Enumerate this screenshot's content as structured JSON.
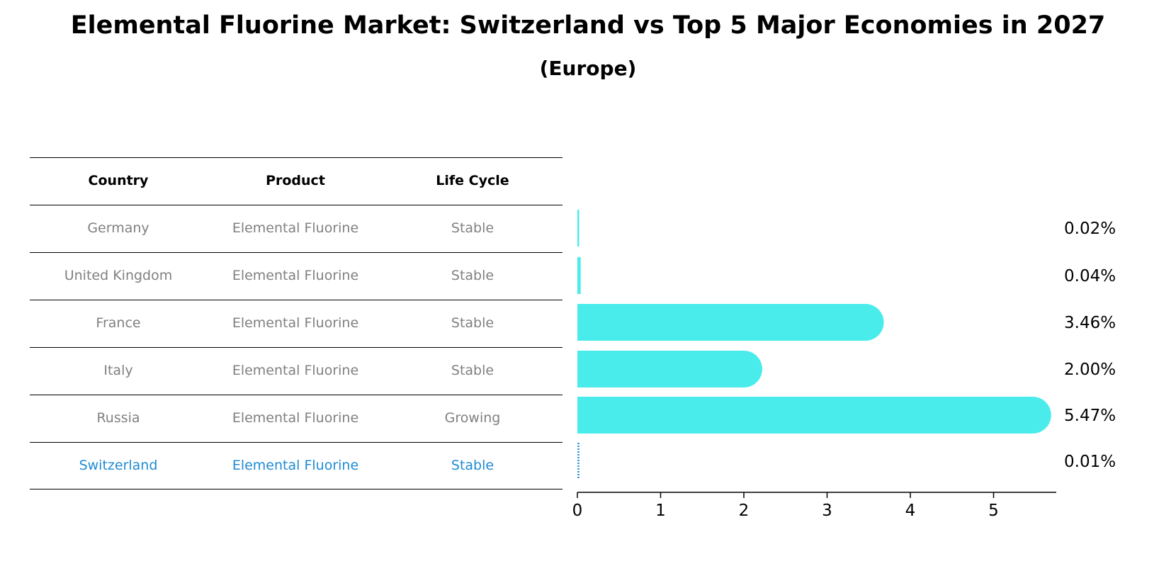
{
  "title": "Elemental Fluorine Market: Switzerland vs Top 5 Major Economies in 2027",
  "subtitle": "(Europe)",
  "table": {
    "headers": [
      "Country",
      "Product",
      "Life Cycle"
    ],
    "rows": [
      {
        "country": "Germany",
        "product": "Elemental Fluorine",
        "life_cycle": "Stable"
      },
      {
        "country": "United Kingdom",
        "product": "Elemental Fluorine",
        "life_cycle": "Stable"
      },
      {
        "country": "France",
        "product": "Elemental Fluorine",
        "life_cycle": "Stable"
      },
      {
        "country": "Italy",
        "product": "Elemental Fluorine",
        "life_cycle": "Stable"
      },
      {
        "country": "Russia",
        "product": "Elemental Fluorine",
        "life_cycle": "Growing"
      },
      {
        "country": "Switzerland",
        "product": "Elemental Fluorine",
        "life_cycle": "Stable"
      }
    ]
  },
  "colors": {
    "bar": "#4aeceb",
    "highlight": "#1f8bd4",
    "row_text": "#808080"
  },
  "chart_data": {
    "type": "bar",
    "orientation": "horizontal",
    "categories": [
      "Germany",
      "United Kingdom",
      "France",
      "Italy",
      "Russia",
      "Switzerland"
    ],
    "values": [
      0.02,
      0.04,
      3.46,
      2.0,
      5.47,
      0.01
    ],
    "value_labels": [
      "0.02%",
      "0.04%",
      "3.46%",
      "2.00%",
      "5.47%",
      "0.01%"
    ],
    "highlight_category": "Switzerland",
    "xticks": [
      "0",
      "1",
      "2",
      "3",
      "4",
      "5"
    ],
    "xlim": [
      0,
      5.75
    ],
    "grid": false
  }
}
